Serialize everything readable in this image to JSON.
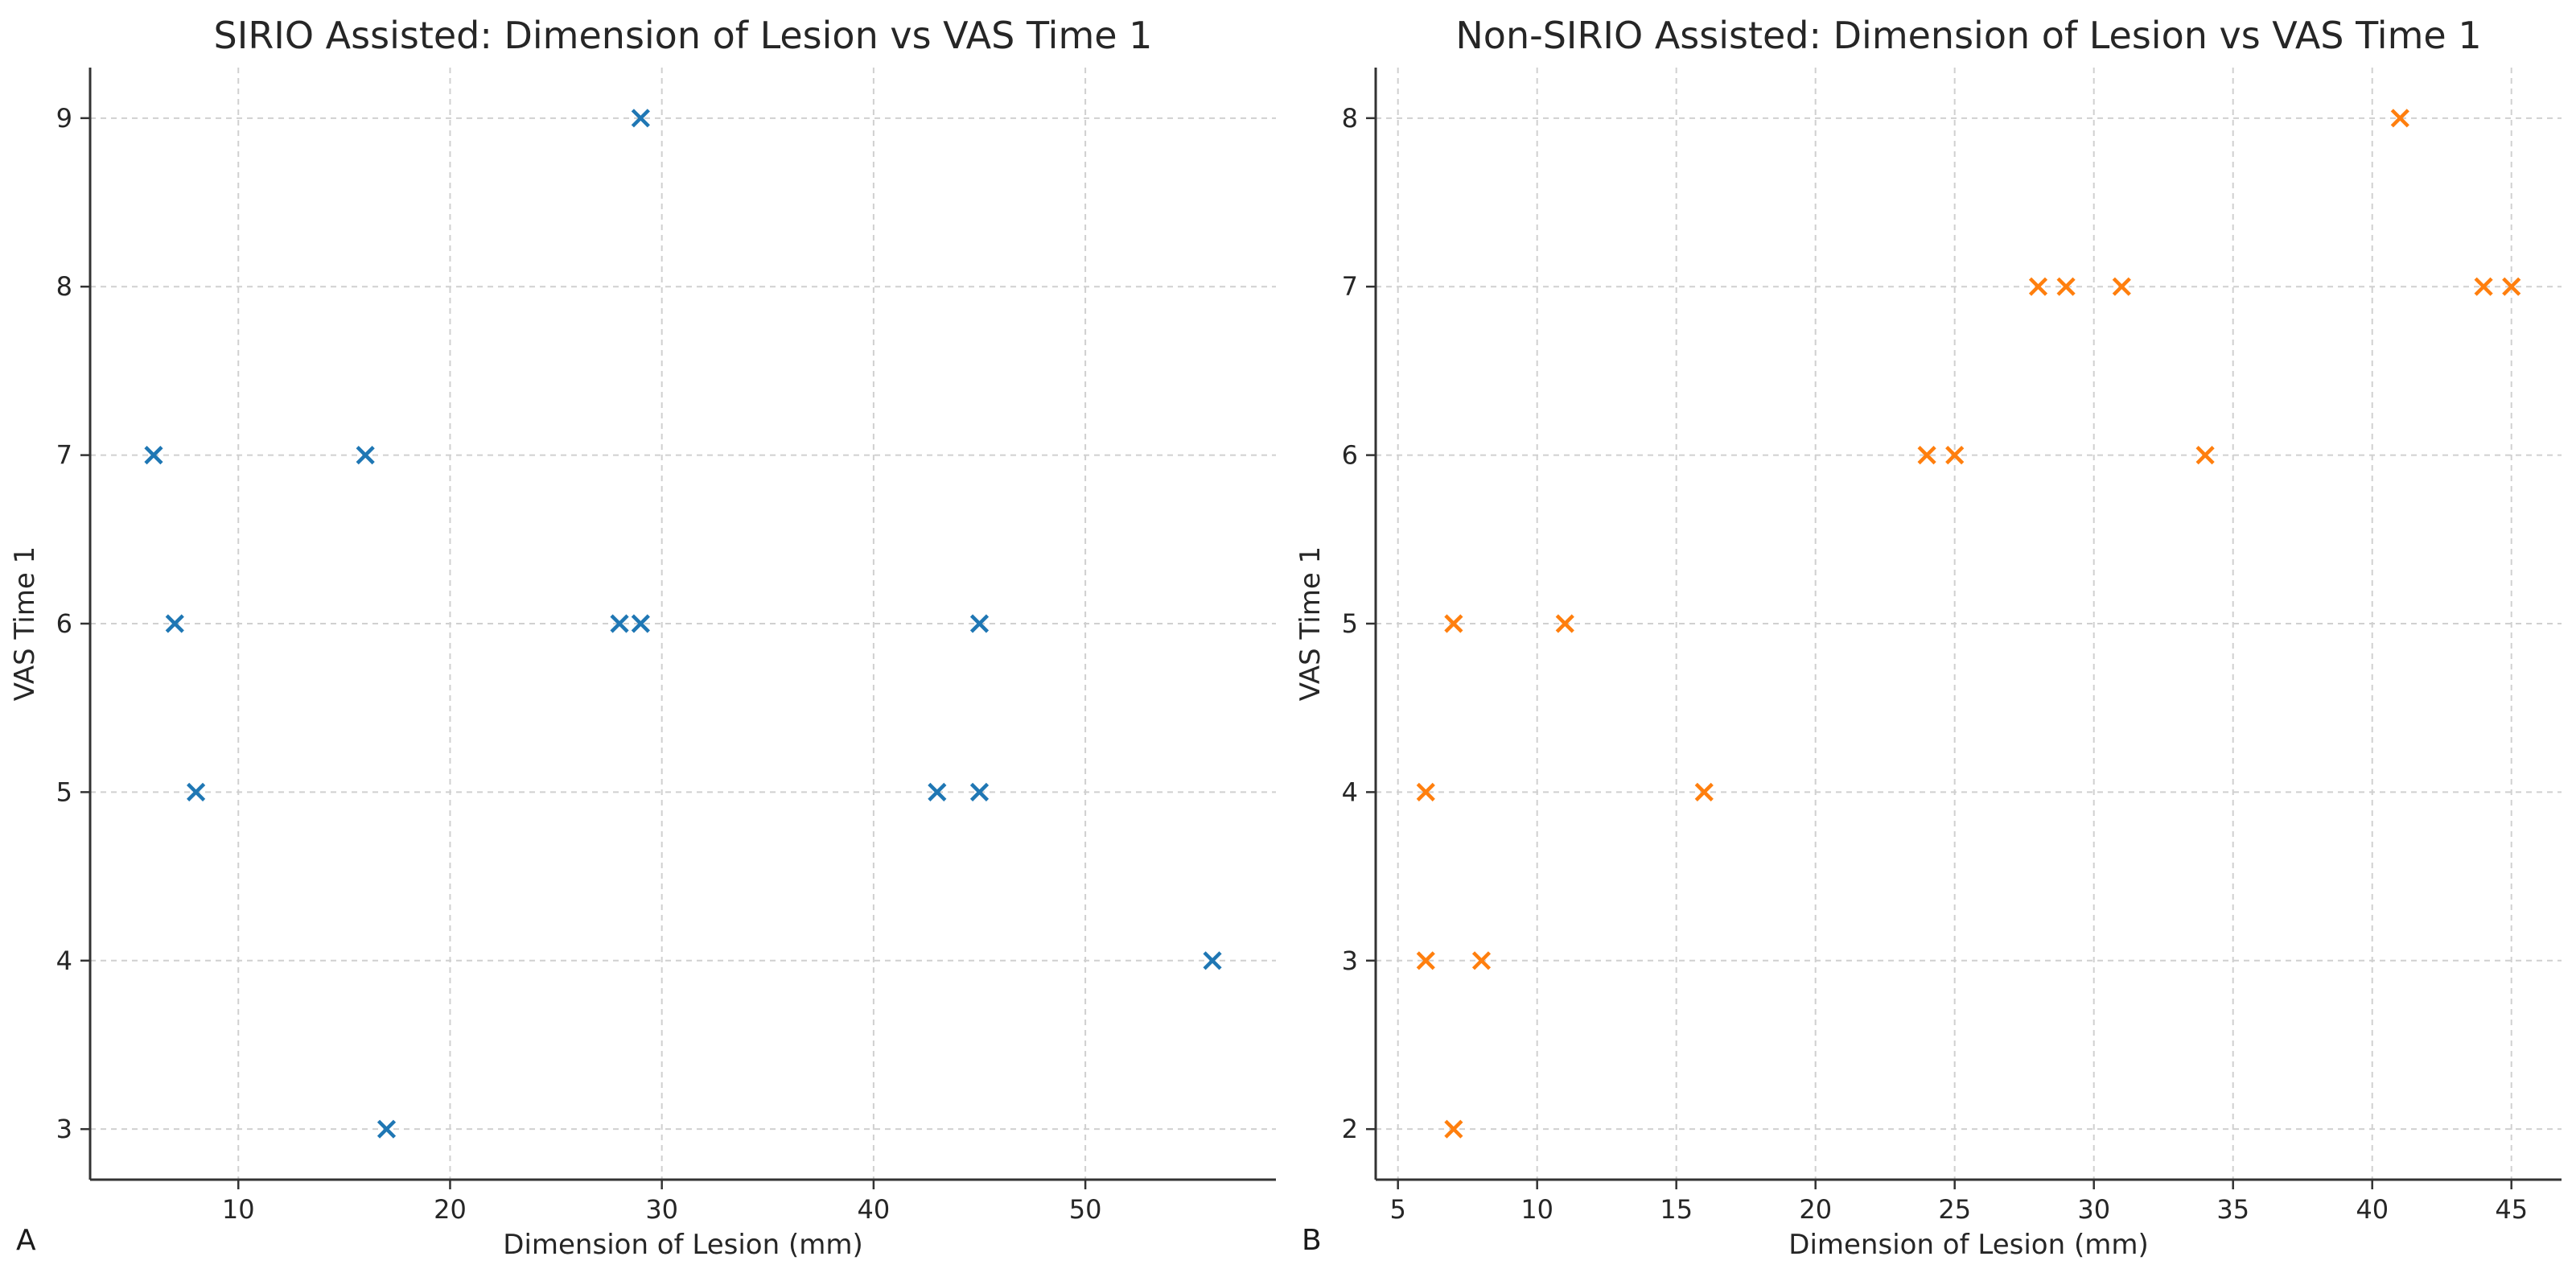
{
  "chart_data": [
    {
      "type": "scatter",
      "panel": "A",
      "title": "SIRIO Assisted: Dimension of Lesion vs VAS Time 1",
      "xlabel": "Dimension of Lesion (mm)",
      "ylabel": "VAS Time 1",
      "xlim": [
        3,
        59
      ],
      "ylim": [
        2.7,
        9.3
      ],
      "xticks": [
        10,
        20,
        30,
        40,
        50
      ],
      "yticks": [
        3,
        4,
        5,
        6,
        7,
        8,
        9
      ],
      "grid": true,
      "marker": "x",
      "color": "#1f77b4",
      "x": [
        6,
        16,
        7,
        28,
        29,
        45,
        8,
        43,
        45,
        56,
        17,
        29
      ],
      "y": [
        7,
        7,
        6,
        6,
        6,
        6,
        5,
        5,
        5,
        4,
        3,
        9
      ]
    },
    {
      "type": "scatter",
      "panel": "B",
      "title": "Non-SIRIO Assisted: Dimension of Lesion vs VAS Time 1",
      "xlabel": "Dimension of Lesion (mm)",
      "ylabel": "VAS Time 1",
      "xlim": [
        4.2,
        46.8
      ],
      "ylim": [
        1.7,
        8.3
      ],
      "xticks": [
        5,
        10,
        15,
        20,
        25,
        30,
        35,
        40,
        45
      ],
      "yticks": [
        2,
        3,
        4,
        5,
        6,
        7,
        8
      ],
      "grid": true,
      "marker": "x",
      "color": "#ff7f0e",
      "x": [
        41,
        28,
        29,
        31,
        44,
        45,
        24,
        25,
        34,
        7,
        11,
        6,
        16,
        6,
        8,
        7
      ],
      "y": [
        8,
        7,
        7,
        7,
        7,
        7,
        6,
        6,
        6,
        5,
        5,
        4,
        4,
        3,
        3,
        2
      ]
    }
  ]
}
